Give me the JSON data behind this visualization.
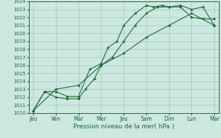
{
  "background_color": "#cce8e0",
  "grid_color": "#99ccbb",
  "line_color": "#1a6630",
  "xlabel": "Pression niveau de la mer( hPa )",
  "ylim": [
    1010,
    1024
  ],
  "yticks": [
    1010,
    1011,
    1012,
    1013,
    1014,
    1015,
    1016,
    1017,
    1018,
    1019,
    1020,
    1021,
    1022,
    1023,
    1024
  ],
  "xtick_labels": [
    "Jeu",
    "Ven",
    "Mar",
    "Mer",
    "Jeu",
    "Sam",
    "Dim",
    "Lun",
    "Mar"
  ],
  "xtick_positions": [
    0,
    1,
    2,
    3,
    4,
    5,
    6,
    7,
    8
  ],
  "lines": [
    {
      "x": [
        0,
        0.5,
        1.0,
        1.5,
        2.0,
        2.5,
        3.0,
        3.3,
        3.7,
        4.0,
        4.5,
        5.0,
        5.3,
        5.7,
        6.0,
        6.5,
        7.0,
        7.5,
        8.0
      ],
      "y": [
        1010.3,
        1012.7,
        1012.7,
        1012.1,
        1012.1,
        1015.5,
        1016.2,
        1018.2,
        1019.0,
        1021.0,
        1022.5,
        1023.5,
        1023.3,
        1023.5,
        1023.3,
        1023.3,
        1022.0,
        1021.8,
        1021.8
      ]
    },
    {
      "x": [
        0,
        0.5,
        1.0,
        1.5,
        2.0,
        2.3,
        2.7,
        3.0,
        3.5,
        4.0,
        4.5,
        5.0,
        5.5,
        6.0,
        6.5,
        7.0,
        7.5,
        8.0
      ],
      "y": [
        1010.3,
        1012.7,
        1012.0,
        1011.8,
        1011.8,
        1013.0,
        1014.3,
        1016.0,
        1017.0,
        1019.0,
        1021.0,
        1022.5,
        1023.3,
        1023.3,
        1023.5,
        1023.0,
        1023.3,
        1021.0
      ]
    },
    {
      "x": [
        0,
        1.0,
        2.0,
        3.0,
        4.0,
        5.0,
        6.0,
        7.0,
        8.0
      ],
      "y": [
        1010.3,
        1013.0,
        1013.5,
        1016.0,
        1017.5,
        1019.5,
        1021.0,
        1022.5,
        1021.0
      ]
    }
  ]
}
